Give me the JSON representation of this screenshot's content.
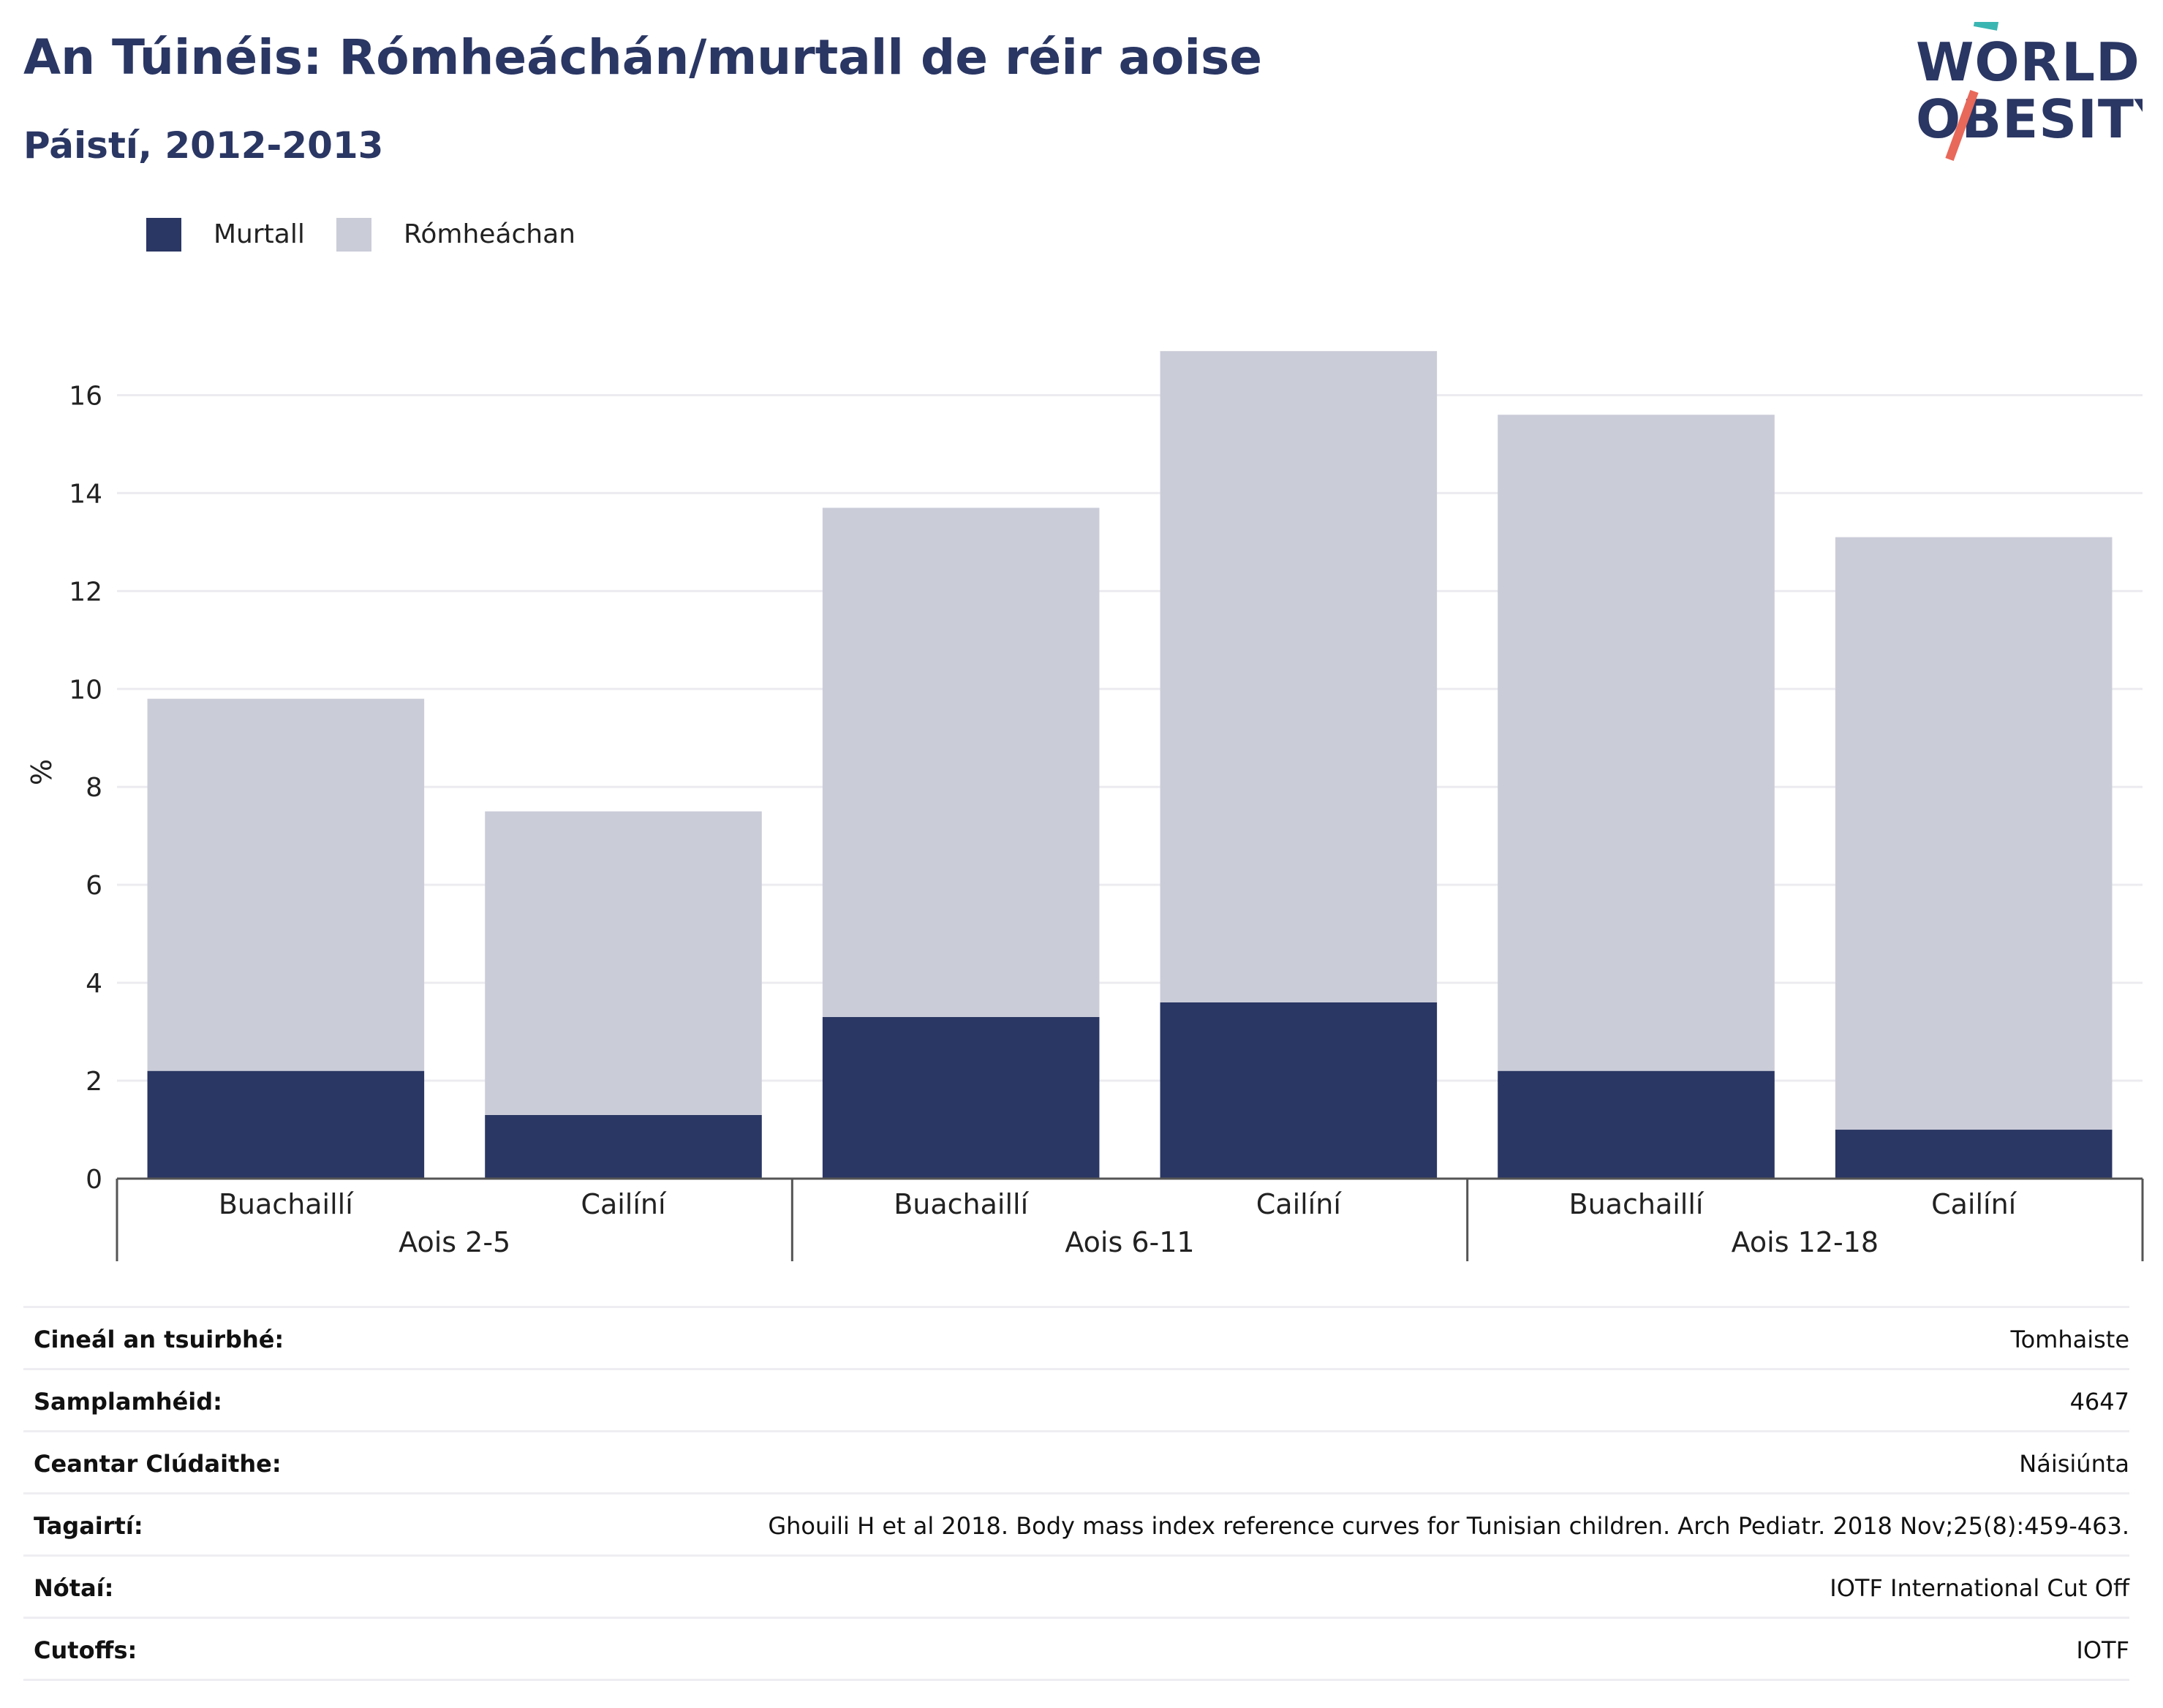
{
  "header": {
    "title": "An Túinéis: Rómheáchán/murtall de réir aoise",
    "subtitle": "Páistí, 2012-2013"
  },
  "logo": {
    "line1": "WORLD",
    "line2": "OBESITY",
    "colors": {
      "text": "#2a3663",
      "slash_top": "#3ab6b2",
      "slash_bottom": "#e8685a"
    }
  },
  "chart_data": {
    "type": "bar",
    "stacked": true,
    "ylabel": "%",
    "ylim": [
      0,
      17.5
    ],
    "yticks": [
      0,
      2,
      4,
      6,
      8,
      10,
      12,
      14,
      16
    ],
    "grid": true,
    "legend_position": "top-left",
    "categories": [
      "Buachaillí",
      "Cailíní",
      "Buachaillí",
      "Cailíní",
      "Buachaillí",
      "Cailíní"
    ],
    "groups": [
      {
        "label": "Aois 2-5",
        "span": [
          0,
          1
        ]
      },
      {
        "label": "Aois 6-11",
        "span": [
          2,
          3
        ]
      },
      {
        "label": "Aois 12-18",
        "span": [
          4,
          5
        ]
      }
    ],
    "series": [
      {
        "name": "Murtall",
        "color": "#2a3663",
        "values": [
          2.2,
          1.3,
          3.3,
          3.6,
          2.2,
          1.0
        ]
      },
      {
        "name": "Rómheáchan",
        "color": "#caccd8",
        "values": [
          7.6,
          6.2,
          10.4,
          13.3,
          13.4,
          12.1
        ]
      }
    ]
  },
  "table": {
    "rows": [
      {
        "label": "Cineál an tsuirbhé:",
        "value": "Tomhaiste"
      },
      {
        "label": "Samplamhéid:",
        "value": "4647"
      },
      {
        "label": "Ceantar Clúdaithe:",
        "value": "Náisiúnta"
      },
      {
        "label": "Tagairtí:",
        "value": "Ghouili H et al 2018. Body mass index reference curves for Tunisian children. Arch Pediatr. 2018 Nov;25(8):459-463."
      },
      {
        "label": "Nótaí:",
        "value": "IOTF International Cut Off"
      },
      {
        "label": "Cutoffs:",
        "value": "IOTF"
      }
    ]
  }
}
